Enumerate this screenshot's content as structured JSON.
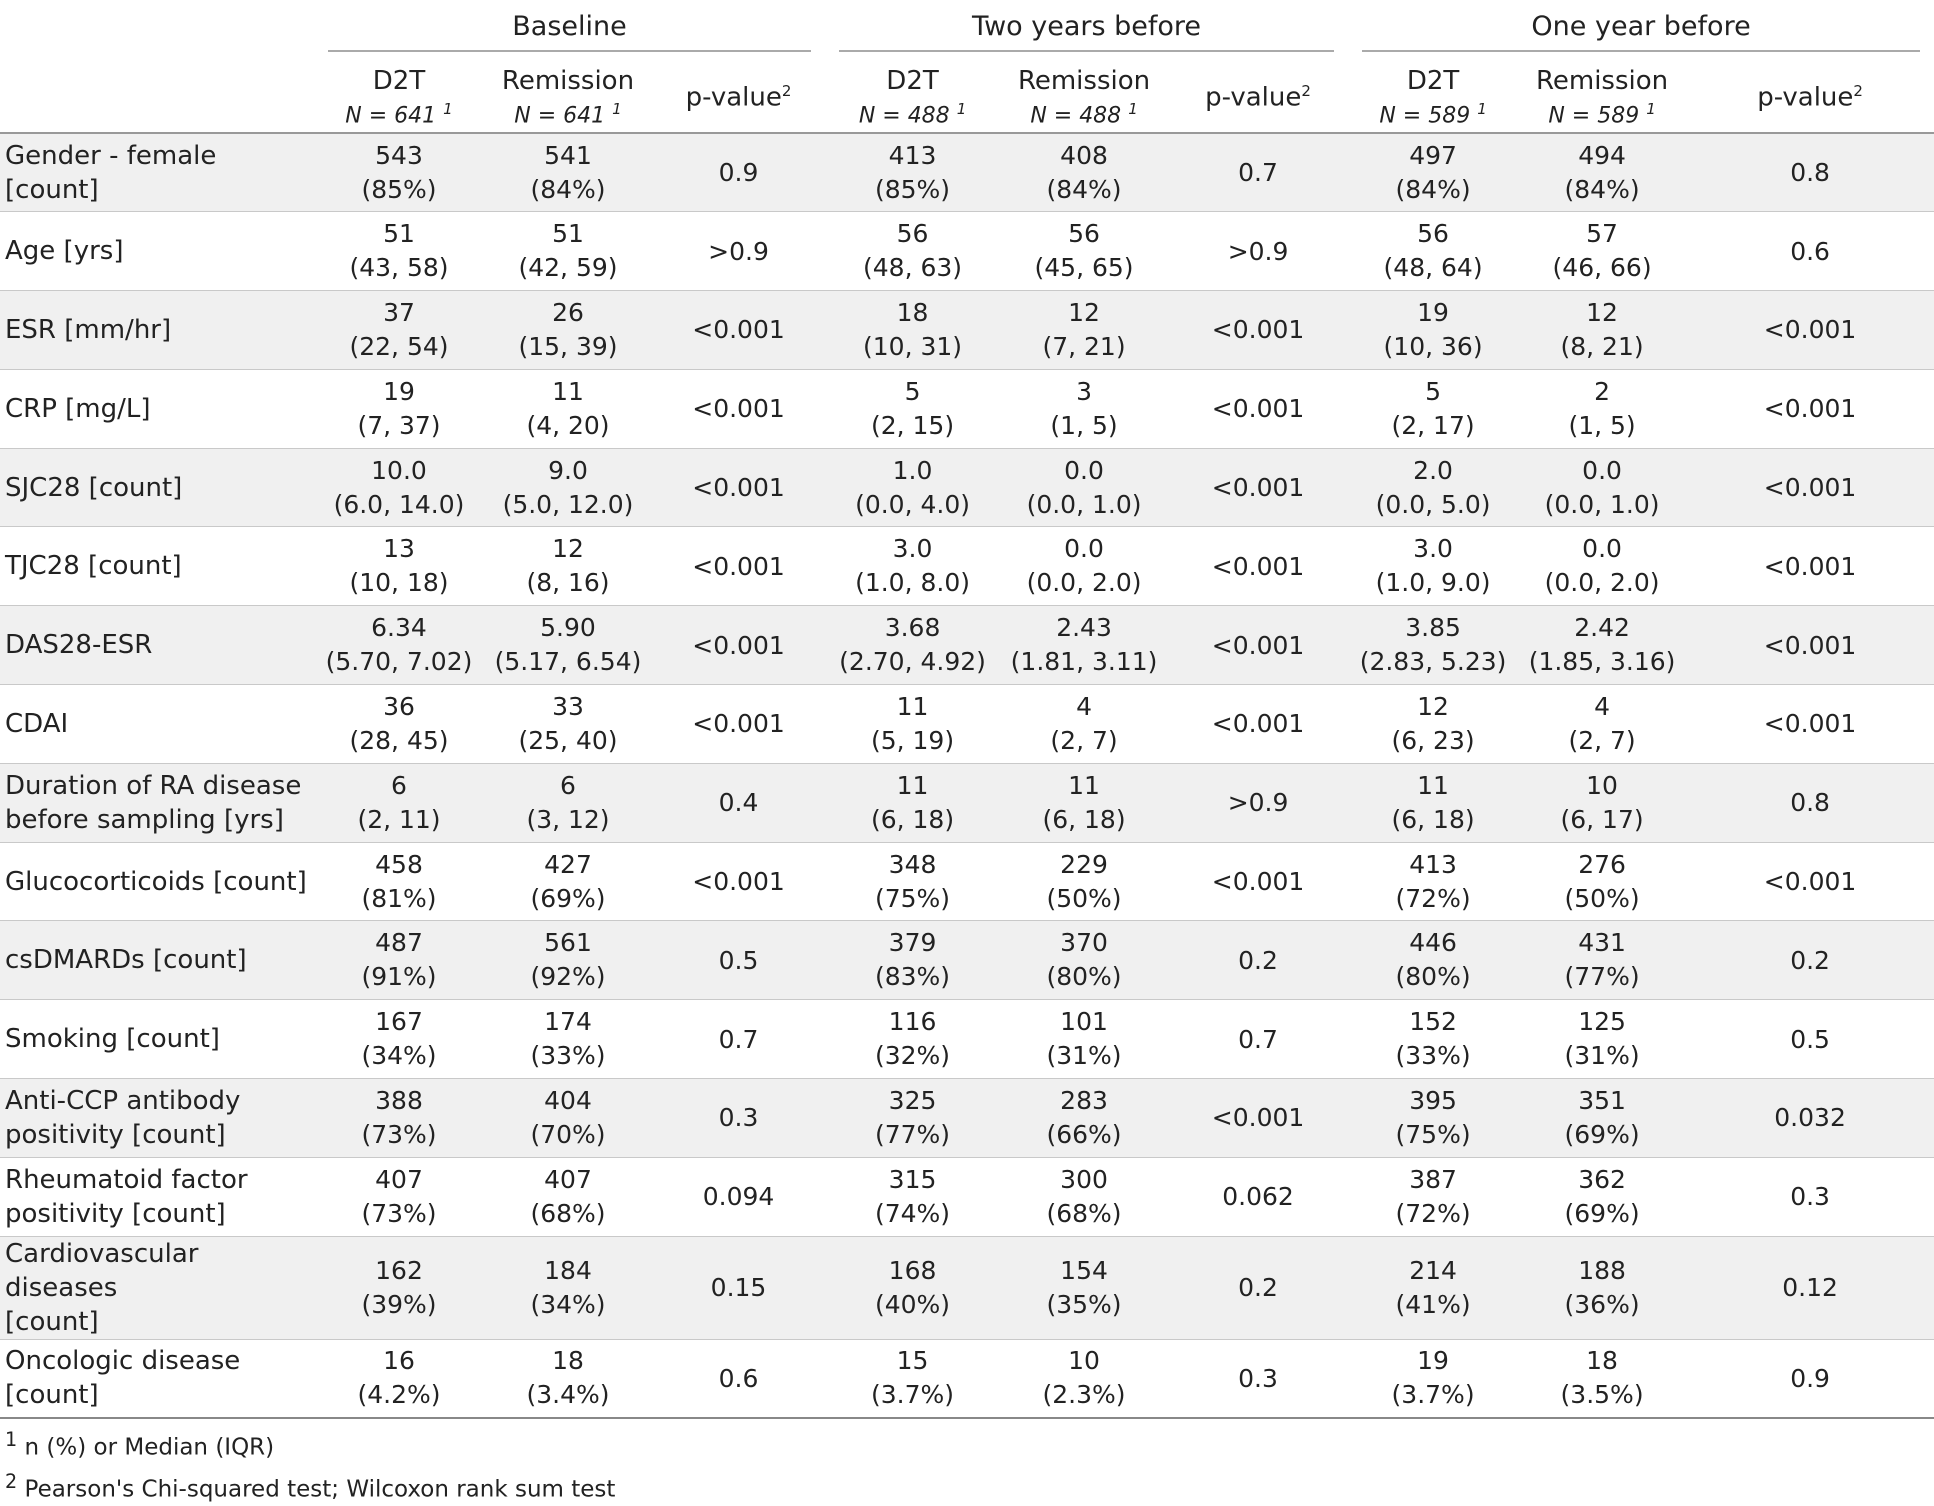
{
  "groups": [
    {
      "title": "Baseline",
      "c1": "D2T",
      "n1": "N = 641",
      "c2": "Remission",
      "n2": "N = 641",
      "p": "p-value"
    },
    {
      "title": "Two years before",
      "c1": "D2T",
      "n1": "N = 488",
      "c2": "Remission",
      "n2": "N = 488",
      "p": "p-value"
    },
    {
      "title": "One year before",
      "c1": "D2T",
      "n1": "N = 589",
      "c2": "Remission",
      "n2": "N = 589",
      "p": "p-value"
    }
  ],
  "sup1": "1",
  "sup2": "2",
  "rows": [
    {
      "label": [
        "Gender - female [count]"
      ],
      "cells": [
        [
          "543",
          "(85%)"
        ],
        [
          "541",
          "(84%)"
        ],
        "0.9",
        [
          "413",
          "(85%)"
        ],
        [
          "408",
          "(84%)"
        ],
        "0.7",
        [
          "497",
          "(84%)"
        ],
        [
          "494",
          "(84%)"
        ],
        "0.8"
      ]
    },
    {
      "label": [
        "Age [yrs]"
      ],
      "cells": [
        [
          "51",
          "(43, 58)"
        ],
        [
          "51",
          "(42, 59)"
        ],
        ">0.9",
        [
          "56",
          "(48, 63)"
        ],
        [
          "56",
          "(45, 65)"
        ],
        ">0.9",
        [
          "56",
          "(48, 64)"
        ],
        [
          "57",
          "(46, 66)"
        ],
        "0.6"
      ]
    },
    {
      "label": [
        "ESR [mm/hr]"
      ],
      "cells": [
        [
          "37",
          "(22, 54)"
        ],
        [
          "26",
          "(15, 39)"
        ],
        "<0.001",
        [
          "18",
          "(10, 31)"
        ],
        [
          "12",
          "(7, 21)"
        ],
        "<0.001",
        [
          "19",
          "(10, 36)"
        ],
        [
          "12",
          "(8, 21)"
        ],
        "<0.001"
      ]
    },
    {
      "label": [
        "CRP [mg/L]"
      ],
      "cells": [
        [
          "19",
          "(7, 37)"
        ],
        [
          "11",
          "(4, 20)"
        ],
        "<0.001",
        [
          "5",
          "(2, 15)"
        ],
        [
          "3",
          "(1, 5)"
        ],
        "<0.001",
        [
          "5",
          "(2, 17)"
        ],
        [
          "2",
          "(1, 5)"
        ],
        "<0.001"
      ]
    },
    {
      "label": [
        "SJC28 [count]"
      ],
      "cells": [
        [
          "10.0",
          "(6.0, 14.0)"
        ],
        [
          "9.0",
          "(5.0, 12.0)"
        ],
        "<0.001",
        [
          "1.0",
          "(0.0, 4.0)"
        ],
        [
          "0.0",
          "(0.0, 1.0)"
        ],
        "<0.001",
        [
          "2.0",
          "(0.0, 5.0)"
        ],
        [
          "0.0",
          "(0.0, 1.0)"
        ],
        "<0.001"
      ]
    },
    {
      "label": [
        "TJC28 [count]"
      ],
      "cells": [
        [
          "13",
          "(10, 18)"
        ],
        [
          "12",
          "(8, 16)"
        ],
        "<0.001",
        [
          "3.0",
          "(1.0, 8.0)"
        ],
        [
          "0.0",
          "(0.0, 2.0)"
        ],
        "<0.001",
        [
          "3.0",
          "(1.0, 9.0)"
        ],
        [
          "0.0",
          "(0.0, 2.0)"
        ],
        "<0.001"
      ]
    },
    {
      "label": [
        "DAS28-ESR"
      ],
      "cells": [
        [
          "6.34",
          "(5.70, 7.02)"
        ],
        [
          "5.90",
          "(5.17, 6.54)"
        ],
        "<0.001",
        [
          "3.68",
          "(2.70, 4.92)"
        ],
        [
          "2.43",
          "(1.81, 3.11)"
        ],
        "<0.001",
        [
          "3.85",
          "(2.83, 5.23)"
        ],
        [
          "2.42",
          "(1.85, 3.16)"
        ],
        "<0.001"
      ]
    },
    {
      "label": [
        "CDAI"
      ],
      "cells": [
        [
          "36",
          "(28, 45)"
        ],
        [
          "33",
          "(25, 40)"
        ],
        "<0.001",
        [
          "11",
          "(5, 19)"
        ],
        [
          "4",
          "(2, 7)"
        ],
        "<0.001",
        [
          "12",
          "(6, 23)"
        ],
        [
          "4",
          "(2, 7)"
        ],
        "<0.001"
      ]
    },
    {
      "label": [
        "Duration of RA disease",
        "before sampling [yrs]"
      ],
      "cells": [
        [
          "6",
          "(2, 11)"
        ],
        [
          "6",
          "(3, 12)"
        ],
        "0.4",
        [
          "11",
          "(6, 18)"
        ],
        [
          "11",
          "(6, 18)"
        ],
        ">0.9",
        [
          "11",
          "(6, 18)"
        ],
        [
          "10",
          "(6, 17)"
        ],
        "0.8"
      ]
    },
    {
      "label": [
        "Glucocorticoids [count]"
      ],
      "cells": [
        [
          "458",
          "(81%)"
        ],
        [
          "427",
          "(69%)"
        ],
        "<0.001",
        [
          "348",
          "(75%)"
        ],
        [
          "229",
          "(50%)"
        ],
        "<0.001",
        [
          "413",
          "(72%)"
        ],
        [
          "276",
          "(50%)"
        ],
        "<0.001"
      ]
    },
    {
      "label": [
        "csDMARDs [count]"
      ],
      "cells": [
        [
          "487",
          "(91%)"
        ],
        [
          "561",
          "(92%)"
        ],
        "0.5",
        [
          "379",
          "(83%)"
        ],
        [
          "370",
          "(80%)"
        ],
        "0.2",
        [
          "446",
          "(80%)"
        ],
        [
          "431",
          "(77%)"
        ],
        "0.2"
      ]
    },
    {
      "label": [
        "Smoking [count]"
      ],
      "cells": [
        [
          "167",
          "(34%)"
        ],
        [
          "174",
          "(33%)"
        ],
        "0.7",
        [
          "116",
          "(32%)"
        ],
        [
          "101",
          "(31%)"
        ],
        "0.7",
        [
          "152",
          "(33%)"
        ],
        [
          "125",
          "(31%)"
        ],
        "0.5"
      ]
    },
    {
      "label": [
        "Anti-CCP antibody",
        "positivity [count]"
      ],
      "cells": [
        [
          "388",
          "(73%)"
        ],
        [
          "404",
          "(70%)"
        ],
        "0.3",
        [
          "325",
          "(77%)"
        ],
        [
          "283",
          "(66%)"
        ],
        "<0.001",
        [
          "395",
          "(75%)"
        ],
        [
          "351",
          "(69%)"
        ],
        "0.032"
      ]
    },
    {
      "label": [
        "Rheumatoid factor",
        "positivity [count]"
      ],
      "cells": [
        [
          "407",
          "(73%)"
        ],
        [
          "407",
          "(68%)"
        ],
        "0.094",
        [
          "315",
          "(74%)"
        ],
        [
          "300",
          "(68%)"
        ],
        "0.062",
        [
          "387",
          "(72%)"
        ],
        [
          "362",
          "(69%)"
        ],
        "0.3"
      ]
    },
    {
      "label": [
        "Cardiovascular diseases",
        "[count]"
      ],
      "cells": [
        [
          "162",
          "(39%)"
        ],
        [
          "184",
          "(34%)"
        ],
        "0.15",
        [
          "168",
          "(40%)"
        ],
        [
          "154",
          "(35%)"
        ],
        "0.2",
        [
          "214",
          "(41%)"
        ],
        [
          "188",
          "(36%)"
        ],
        "0.12"
      ]
    },
    {
      "label": [
        "Oncologic disease [count]"
      ],
      "cells": [
        [
          "16",
          "(4.2%)"
        ],
        [
          "18",
          "(3.4%)"
        ],
        "0.6",
        [
          "15",
          "(3.7%)"
        ],
        [
          "10",
          "(2.3%)"
        ],
        "0.3",
        [
          "19",
          "(3.7%)"
        ],
        [
          "18",
          "(3.5%)"
        ],
        "0.9"
      ]
    }
  ],
  "footnotes": [
    {
      "mark": "1",
      "text": "n (%) or Median (IQR)"
    },
    {
      "mark": "2",
      "text": "Pearson's Chi-squared test; Wilcoxon rank sum test"
    }
  ]
}
